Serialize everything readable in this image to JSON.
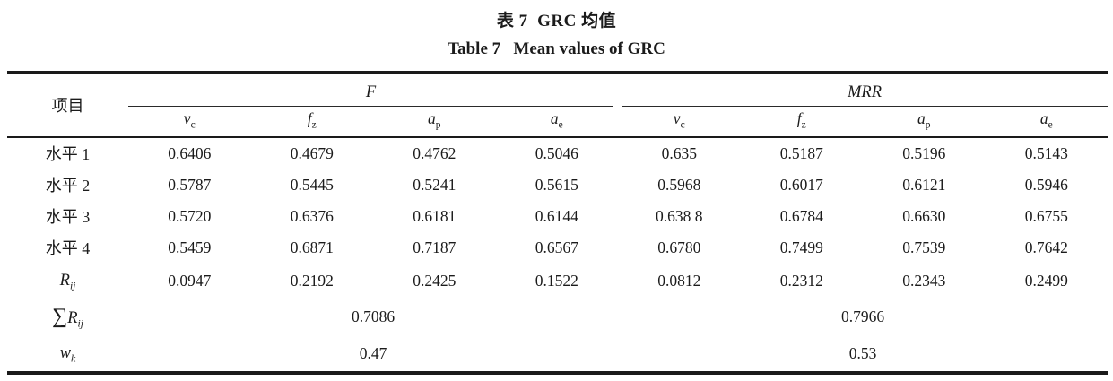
{
  "titles": {
    "zh": "表 7  GRC 均值",
    "en": "Table 7   Mean values of GRC"
  },
  "table": {
    "item_header": "项目",
    "groups": [
      {
        "label": "F",
        "subcols": [
          {
            "base": "v",
            "sub": "c"
          },
          {
            "base": "f",
            "sub": "z"
          },
          {
            "base": "a",
            "sub": "p"
          },
          {
            "base": "a",
            "sub": "e"
          }
        ]
      },
      {
        "label": "MRR",
        "subcols": [
          {
            "base": "v",
            "sub": "c"
          },
          {
            "base": "f",
            "sub": "z"
          },
          {
            "base": "a",
            "sub": "p"
          },
          {
            "base": "a",
            "sub": "e"
          }
        ]
      }
    ],
    "level_rows": [
      {
        "label": "水平 1",
        "values": [
          "0.6406",
          "0.4679",
          "0.4762",
          "0.5046",
          "0.635",
          "0.5187",
          "0.5196",
          "0.5143"
        ]
      },
      {
        "label": "水平 2",
        "values": [
          "0.5787",
          "0.5445",
          "0.5241",
          "0.5615",
          "0.5968",
          "0.6017",
          "0.6121",
          "0.5946"
        ]
      },
      {
        "label": "水平 3",
        "values": [
          "0.5720",
          "0.6376",
          "0.6181",
          "0.6144",
          "0.638 8",
          "0.6784",
          "0.6630",
          "0.6755"
        ]
      },
      {
        "label": "水平 4",
        "values": [
          "0.5459",
          "0.6871",
          "0.7187",
          "0.6567",
          "0.6780",
          "0.7499",
          "0.7539",
          "0.7642"
        ]
      }
    ],
    "rij_row": {
      "label_base": "R",
      "label_sub": "ij",
      "values": [
        "0.0947",
        "0.2192",
        "0.2425",
        "0.1522",
        "0.0812",
        "0.2312",
        "0.2343",
        "0.2499"
      ]
    },
    "sum_rij_row": {
      "sigma": "∑",
      "label_base": "R",
      "label_sub": "ij",
      "f_value": "0.7086",
      "mrr_value": "0.7966"
    },
    "wk_row": {
      "label_base": "w",
      "label_sub": "k",
      "f_value": "0.47",
      "mrr_value": "0.53"
    }
  }
}
